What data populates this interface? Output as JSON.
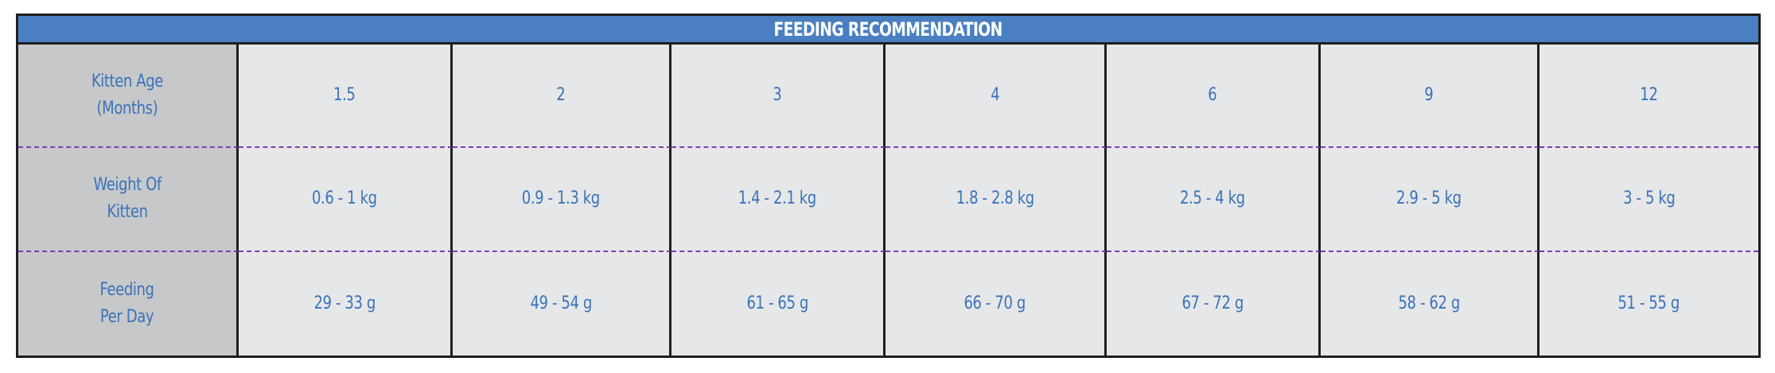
{
  "table": {
    "title": "FEEDING RECOMMENDATION",
    "rows": [
      {
        "label": "Kitten Age\n(Months)",
        "values": [
          "1.5",
          "2",
          "3",
          "4",
          "6",
          "9",
          "12"
        ]
      },
      {
        "label": "Weight Of\nKitten",
        "values": [
          "0.6 - 1 kg",
          "0.9 - 1.3 kg",
          "1.4 - 2.1 kg",
          "1.8 - 2.8 kg",
          "2.5 - 4 kg",
          "2.9 - 5 kg",
          "3 - 5 kg"
        ]
      },
      {
        "label": "Feeding\nPer Day",
        "values": [
          "29 - 33 g",
          "49 - 54 g",
          "61 - 65 g",
          "66 - 70 g",
          "67 - 72 g",
          "58 - 62 g",
          "51 - 55 g"
        ]
      }
    ]
  },
  "colors": {
    "header_background": "#4a7fc1",
    "header_text": "#ffffff",
    "cell_text": "#3b73b9",
    "label_background": "#c7c8ca",
    "value_background": "#e6e7e8",
    "border": "#1f1f1f",
    "row_divider": "#7b3fa8"
  }
}
